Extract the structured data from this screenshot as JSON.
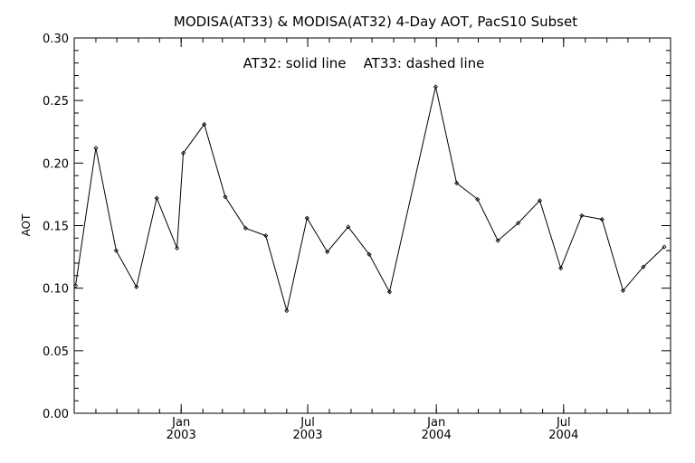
{
  "chart_data": {
    "type": "line",
    "title": "MODISA(AT33) & MODISA(AT32) 4-Day AOT, PacS10 Subset",
    "annotation": "AT32: solid line    AT33: dashed line",
    "xlabel": "",
    "ylabel": "AOT",
    "ylim": [
      0.0,
      0.3
    ],
    "yticks": [
      "0.00",
      "0.05",
      "0.10",
      "0.15",
      "0.20",
      "0.25",
      "0.30"
    ],
    "xticks": [
      {
        "month": "Jan",
        "year": "2003",
        "date": "2003-01-01"
      },
      {
        "month": "Jul",
        "year": "2003",
        "date": "2003-07-01"
      },
      {
        "month": "Jan",
        "year": "2004",
        "date": "2004-01-01"
      },
      {
        "month": "Jul",
        "year": "2004",
        "date": "2004-07-01"
      }
    ],
    "xlim": [
      "2002-08-01",
      "2004-12-01"
    ],
    "grid": false,
    "series": [
      {
        "name": "AT32",
        "style": "solid",
        "color": "#000000",
        "points": [
          {
            "x": "2002-08-03",
            "y": 0.102
          },
          {
            "x": "2002-09-01",
            "y": 0.212
          },
          {
            "x": "2002-09-30",
            "y": 0.13
          },
          {
            "x": "2002-10-29",
            "y": 0.101
          },
          {
            "x": "2002-11-27",
            "y": 0.172
          },
          {
            "x": "2002-12-26",
            "y": 0.132
          },
          {
            "x": "2003-01-04",
            "y": 0.208
          },
          {
            "x": "2003-02-03",
            "y": 0.231
          },
          {
            "x": "2003-03-05",
            "y": 0.173
          },
          {
            "x": "2003-04-03",
            "y": 0.148
          },
          {
            "x": "2003-05-02",
            "y": 0.142
          },
          {
            "x": "2003-06-01",
            "y": 0.082
          },
          {
            "x": "2003-06-30",
            "y": 0.156
          },
          {
            "x": "2003-07-29",
            "y": 0.129
          },
          {
            "x": "2003-08-28",
            "y": 0.149
          },
          {
            "x": "2003-09-27",
            "y": 0.127
          },
          {
            "x": "2003-10-26",
            "y": 0.097
          },
          {
            "x": "2003-12-31",
            "y": 0.261
          },
          {
            "x": "2004-01-30",
            "y": 0.184
          },
          {
            "x": "2004-02-29",
            "y": 0.171
          },
          {
            "x": "2004-03-29",
            "y": 0.138
          },
          {
            "x": "2004-04-27",
            "y": 0.152
          },
          {
            "x": "2004-05-28",
            "y": 0.17
          },
          {
            "x": "2004-06-27",
            "y": 0.116
          },
          {
            "x": "2004-07-27",
            "y": 0.158
          },
          {
            "x": "2004-08-25",
            "y": 0.155
          },
          {
            "x": "2004-09-24",
            "y": 0.098
          },
          {
            "x": "2004-10-23",
            "y": 0.117
          },
          {
            "x": "2004-11-22",
            "y": 0.133
          }
        ]
      }
    ]
  }
}
